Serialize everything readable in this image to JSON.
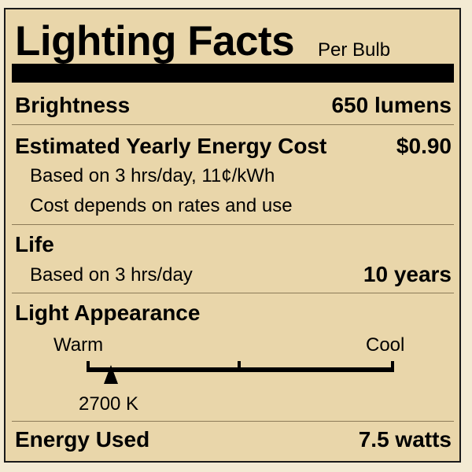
{
  "header": {
    "title": "Lighting Facts",
    "subtitle": "Per Bulb"
  },
  "brightness": {
    "label": "Brightness",
    "value": "650 lumens"
  },
  "cost": {
    "label": "Estimated Yearly Energy Cost",
    "value": "$0.90",
    "note1": "Based on 3 hrs/day, 11¢/kWh",
    "note2": "Cost depends on rates and use"
  },
  "life": {
    "label": "Life",
    "note": "Based on 3 hrs/day",
    "value": "10 years"
  },
  "appearance": {
    "label": "Light Appearance",
    "warm": "Warm",
    "cool": "Cool",
    "marker_label": "2700 K",
    "marker_kelvin": 2700,
    "scale_kelvin": [
      2700,
      6500
    ]
  },
  "energy": {
    "label": "Energy Used",
    "value": "7.5 watts"
  },
  "colors": {
    "background": "#e9d6aa",
    "ink": "#000000"
  }
}
